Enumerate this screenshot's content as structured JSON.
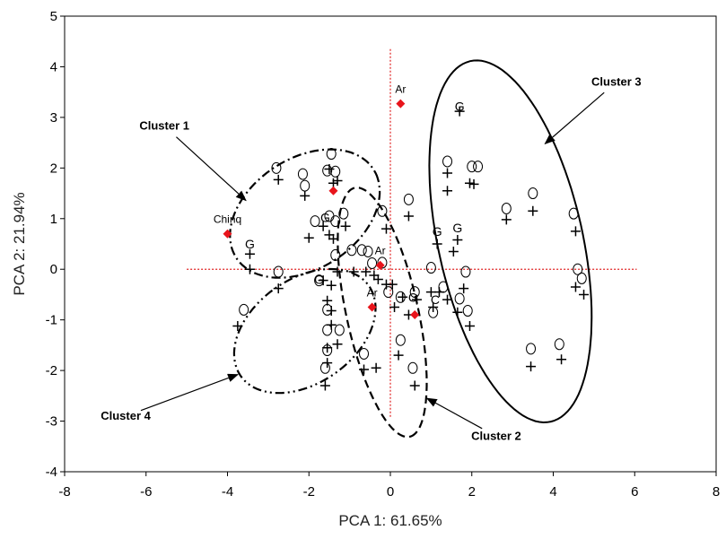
{
  "chart_data": {
    "type": "scatter",
    "xlabel": "PCA 1: 61.65%",
    "ylabel": "PCA 2: 21.94%",
    "xlim": [
      -8,
      8
    ],
    "ylim": [
      -4,
      5
    ],
    "xticks": [
      -8,
      -6,
      -4,
      -2,
      0,
      2,
      4,
      6,
      8
    ],
    "yticks": [
      -4,
      -3,
      -2,
      -1,
      0,
      1,
      2,
      3,
      4,
      5
    ],
    "grid": false,
    "reference_lines": {
      "x": 0,
      "y": 0,
      "color": "#e02020",
      "style": "dotted"
    },
    "highlight_color": "#e8141b",
    "highlighted_points": [
      {
        "x": 0.25,
        "y": 3.27,
        "label": "Ar"
      },
      {
        "x": -4.0,
        "y": 0.7,
        "label": "Chinq"
      },
      {
        "x": -1.4,
        "y": 1.55,
        "label": ""
      },
      {
        "x": -0.25,
        "y": 0.08,
        "label": "Ar"
      },
      {
        "x": -0.45,
        "y": -0.75,
        "label": "Ar"
      },
      {
        "x": 0.6,
        "y": -0.9,
        "label": ""
      }
    ],
    "plus_points": [
      [
        -3.45,
        0.3
      ],
      [
        -3.45,
        0.0
      ],
      [
        -2.75,
        1.77
      ],
      [
        -2.75,
        -0.38
      ],
      [
        -3.75,
        -1.12
      ],
      [
        -2.1,
        1.45
      ],
      [
        -2.0,
        0.62
      ],
      [
        -1.5,
        1.98
      ],
      [
        -1.4,
        1.7
      ],
      [
        -1.3,
        1.75
      ],
      [
        -1.5,
        0.68
      ],
      [
        -1.4,
        0.6
      ],
      [
        -1.1,
        0.85
      ],
      [
        -1.65,
        0.85
      ],
      [
        -1.3,
        -0.05
      ],
      [
        -1.45,
        -0.32
      ],
      [
        -1.65,
        -0.22
      ],
      [
        -1.55,
        -0.62
      ],
      [
        -1.45,
        -0.82
      ],
      [
        -1.45,
        -1.1
      ],
      [
        -1.3,
        -1.48
      ],
      [
        -1.55,
        -1.55
      ],
      [
        -1.55,
        -1.85
      ],
      [
        -1.6,
        -2.3
      ],
      [
        -0.9,
        -0.05
      ],
      [
        -0.6,
        -0.05
      ],
      [
        -0.4,
        -0.12
      ],
      [
        -0.3,
        -0.2
      ],
      [
        -0.1,
        -0.3
      ],
      [
        -0.65,
        -1.98
      ],
      [
        -0.35,
        -1.95
      ],
      [
        0.1,
        -0.75
      ],
      [
        0.45,
        -0.9
      ],
      [
        0.3,
        -0.55
      ],
      [
        0.05,
        -0.3
      ],
      [
        0.2,
        -1.7
      ],
      [
        0.6,
        -2.3
      ],
      [
        -0.1,
        0.8
      ],
      [
        0.45,
        1.05
      ],
      [
        0.65,
        -0.6
      ],
      [
        1.0,
        -0.45
      ],
      [
        1.15,
        0.5
      ],
      [
        1.55,
        0.35
      ],
      [
        1.4,
        1.9
      ],
      [
        1.4,
        1.55
      ],
      [
        1.95,
        1.7
      ],
      [
        2.05,
        1.68
      ],
      [
        1.7,
        3.12
      ],
      [
        1.65,
        0.58
      ],
      [
        1.65,
        -0.85
      ],
      [
        1.8,
        -0.38
      ],
      [
        1.95,
        -1.12
      ],
      [
        1.4,
        -0.6
      ],
      [
        1.2,
        -0.45
      ],
      [
        2.85,
        0.98
      ],
      [
        3.5,
        1.15
      ],
      [
        4.55,
        0.75
      ],
      [
        4.55,
        -0.35
      ],
      [
        4.75,
        -0.5
      ],
      [
        3.45,
        -1.92
      ],
      [
        4.2,
        -1.78
      ],
      [
        1.05,
        -0.75
      ]
    ],
    "o_points": [
      [
        -2.8,
        2.0
      ],
      [
        -2.15,
        1.88
      ],
      [
        -2.1,
        1.65
      ],
      [
        -1.45,
        2.28
      ],
      [
        -1.55,
        1.95
      ],
      [
        -1.35,
        1.93
      ],
      [
        -1.5,
        1.05
      ],
      [
        -1.35,
        0.95
      ],
      [
        -1.15,
        1.1
      ],
      [
        -1.85,
        0.95
      ],
      [
        -0.95,
        0.38
      ],
      [
        -0.7,
        0.38
      ],
      [
        -0.55,
        0.35
      ],
      [
        -0.45,
        0.12
      ],
      [
        -1.35,
        0.28
      ],
      [
        -1.75,
        -0.22
      ],
      [
        -1.55,
        -0.8
      ],
      [
        -1.55,
        -1.2
      ],
      [
        -1.25,
        -1.2
      ],
      [
        -1.55,
        -1.6
      ],
      [
        -1.6,
        -1.95
      ],
      [
        -2.75,
        -0.05
      ],
      [
        -3.6,
        -0.8
      ],
      [
        -0.65,
        -1.67
      ],
      [
        -0.2,
        1.15
      ],
      [
        -0.2,
        0.13
      ],
      [
        -0.05,
        -0.45
      ],
      [
        0.25,
        -0.55
      ],
      [
        0.6,
        -0.45
      ],
      [
        1.0,
        0.03
      ],
      [
        1.05,
        -0.85
      ],
      [
        0.25,
        -1.4
      ],
      [
        0.55,
        -1.95
      ],
      [
        1.3,
        -0.35
      ],
      [
        1.7,
        -0.58
      ],
      [
        1.85,
        -0.05
      ],
      [
        1.9,
        -0.82
      ],
      [
        1.4,
        2.13
      ],
      [
        2.0,
        2.03
      ],
      [
        2.15,
        2.03
      ],
      [
        0.45,
        1.38
      ],
      [
        2.85,
        1.2
      ],
      [
        3.5,
        1.5
      ],
      [
        4.5,
        1.1
      ],
      [
        4.6,
        0.0
      ],
      [
        4.7,
        -0.18
      ],
      [
        3.45,
        -1.57
      ],
      [
        4.15,
        -1.48
      ]
    ],
    "letter_points": [
      {
        "x": 1.7,
        "y": 3.22,
        "text": "G"
      },
      {
        "x": -3.45,
        "y": 0.5,
        "text": "G"
      },
      {
        "x": -1.6,
        "y": 1.02,
        "text": "G"
      },
      {
        "x": -1.75,
        "y": -0.2,
        "text": "G"
      },
      {
        "x": 1.15,
        "y": 0.75,
        "text": "G"
      },
      {
        "x": 1.65,
        "y": 0.82,
        "text": "G"
      },
      {
        "x": 0.55,
        "y": -0.55,
        "text": "C"
      },
      {
        "x": 1.1,
        "y": -0.6,
        "text": "C"
      }
    ],
    "clusters": [
      {
        "name": "Cluster 1",
        "shape": "ellipse",
        "style": "dash-dot",
        "cx": -2.1,
        "cy": 1.1,
        "rx": 1.92,
        "ry": 1.14,
        "angle": 21
      },
      {
        "name": "Cluster 2",
        "shape": "ellipse",
        "style": "dashed",
        "cx": -0.2,
        "cy": -0.85,
        "rx": 2.55,
        "ry": 0.87,
        "angle": -74
      },
      {
        "name": "Cluster 3",
        "shape": "ellipse",
        "style": "solid",
        "cx": 2.95,
        "cy": 0.55,
        "rx": 3.7,
        "ry": 1.75,
        "angle": -73
      },
      {
        "name": "Cluster 4",
        "shape": "ellipse",
        "style": "dash-dot-dot",
        "cx": -2.1,
        "cy": -1.22,
        "rx": 1.83,
        "ry": 1.08,
        "angle": 23
      }
    ],
    "annotations": [
      {
        "text": "Cluster 1",
        "tx": -5.55,
        "ty": 2.83,
        "ax": -3.55,
        "ay": 1.36
      },
      {
        "text": "Cluster 2",
        "tx": 2.6,
        "ty": -3.3,
        "ax": 0.9,
        "ay": -2.55
      },
      {
        "text": "Cluster 3",
        "tx": 5.55,
        "ty": 3.7,
        "ax": 3.8,
        "ay": 2.48
      },
      {
        "text": "Cluster 4",
        "tx": -6.5,
        "ty": -2.9,
        "ax": -3.75,
        "ay": -2.08
      }
    ]
  }
}
